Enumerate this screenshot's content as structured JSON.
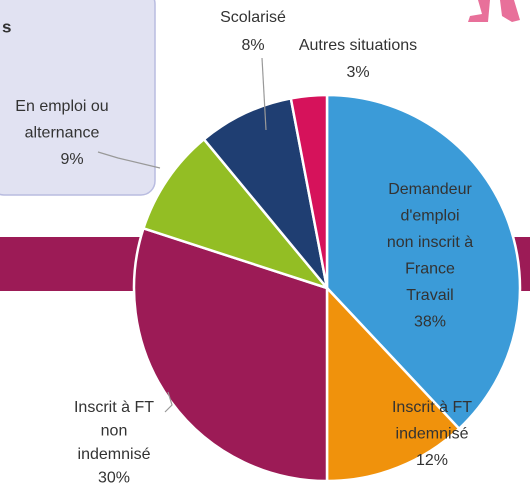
{
  "panel": {
    "text": "s"
  },
  "chart_data": {
    "type": "pie",
    "categories": [
      [
        "Demandeur",
        "d'emploi",
        "non inscrit à",
        "France",
        "Travail"
      ],
      [
        "Inscrit à FT",
        "indemnisé"
      ],
      [
        "Inscrit à FT",
        "non",
        "indemnisé"
      ],
      [
        "En emploi ou",
        "alternance"
      ],
      [
        "Scolarisé"
      ],
      [
        "Autres situations"
      ]
    ],
    "values": [
      38,
      12,
      30,
      9,
      8,
      3
    ],
    "value_labels": [
      "38%",
      "12%",
      "30%",
      "9%",
      "8%",
      "3%"
    ],
    "colors": [
      "#3b9bd8",
      "#f0920c",
      "#9c1b56",
      "#93be24",
      "#1f3e72",
      "#d6125b"
    ]
  }
}
